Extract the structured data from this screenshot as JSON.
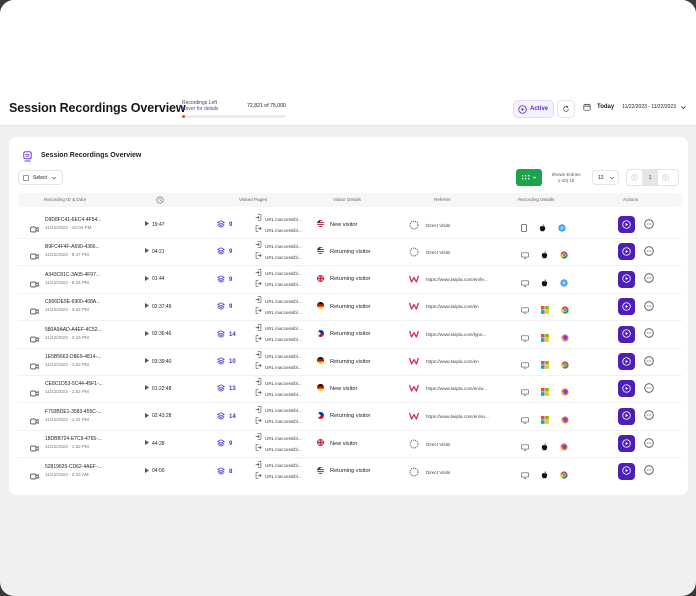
{
  "header": {
    "title": "Session Recordings Overview",
    "recordings_left_label": "Recordings Left",
    "hover_details": "Hover for details",
    "recordings_count": "72,821 of 75,000",
    "recordings_used_fraction": 0.029,
    "active_label": "Active",
    "today_label": "Today",
    "date_range": "11/22/2023 - 11/22/2023"
  },
  "card": {
    "title": "Session Recordings Overview",
    "select_label": "Select",
    "shown_entries_label": "Shown Entries",
    "shown_entries_range": "1-10| 10",
    "per_page": "12",
    "current_page": "1"
  },
  "columns": {
    "recording": "Recording ID & Date",
    "visited_pages": "Visited Pages",
    "visitor_details": "Visitor Details",
    "referrer": "Referrer",
    "recording_details": "Recording Details",
    "actions": "Actions"
  },
  "rows": [
    {
      "id": "D9D8FC41-6EC4-4F54...",
      "date": "11/22/2023 - 10:04 PM",
      "duration": "19:47",
      "pages": "9",
      "url1": "URL inaccessibl...",
      "url2": "URL inaccessibl...",
      "visitor": "New visitor",
      "flag": "us",
      "referrer": "Direct Visits",
      "ref_type": "direct",
      "device": "mobile",
      "os": "apple",
      "browser": "safari"
    },
    {
      "id": "B9FC4F4F-A690-4366...",
      "date": "11/22/2023 - 9:47 PM",
      "duration": "04:21",
      "pages": "9",
      "url1": "URL inaccessibl...",
      "url2": "URL inaccessibl...",
      "visitor": "Returning visitor",
      "flag": "us",
      "referrer": "Direct Visits",
      "ref_type": "direct",
      "device": "desktop",
      "os": "apple",
      "browser": "chrome"
    },
    {
      "id": "A343C81C-3A05-4F97...",
      "date": "11/22/2023 - 8:24 PM",
      "duration": "01:44",
      "pages": "9",
      "url1": "URL inaccessibl...",
      "url2": "URL inaccessibl...",
      "visitor": "Returning visitor",
      "flag": "gb",
      "referrer": "https://www.twipla.com/en/fe...",
      "ref_type": "twipla",
      "device": "desktop",
      "os": "apple",
      "browser": "safari"
    },
    {
      "id": "C666DE5E-6900-468A...",
      "date": "11/22/2023 - 3:42 PM",
      "duration": "02:37:49",
      "pages": "9",
      "url1": "URL inaccessibl...",
      "url2": "URL inaccessibl...",
      "visitor": "Returning visitor",
      "flag": "de",
      "referrer": "https://www.twipla.com/en",
      "ref_type": "twipla",
      "device": "desktop",
      "os": "windows",
      "browser": "chrome"
    },
    {
      "id": "580A9AAD-A4EF-4C52...",
      "date": "11/22/2023 - 2:16 PM",
      "duration": "02:36:46",
      "pages": "14",
      "url1": "URL inaccessibl...",
      "url2": "URL inaccessibl...",
      "visitor": "Returning visitor",
      "flag": "ph",
      "referrer": "https://www.twipla.com/typo...",
      "ref_type": "twipla",
      "device": "desktop",
      "os": "windows",
      "browser": "firefox"
    },
    {
      "id": "1E5B5662-D8E9-4814-...",
      "date": "11/22/2023 - 1:52 PM",
      "duration": "03:39:40",
      "pages": "10",
      "url1": "URL inaccessibl...",
      "url2": "URL inaccessibl...",
      "visitor": "Returning visitor",
      "flag": "de",
      "referrer": "https://www.twipla.com/en",
      "ref_type": "twipla",
      "device": "desktop",
      "os": "windows",
      "browser": "chrome"
    },
    {
      "id": "CE8C1D53-5C44-45F1-...",
      "date": "11/22/2023 - 1:52 PM",
      "duration": "01:22:48",
      "pages": "13",
      "url1": "URL inaccessibl...",
      "url2": "URL inaccessibl...",
      "visitor": "New visitor",
      "flag": "de",
      "referrer": "https://www.twipla.com/en/w...",
      "ref_type": "twipla",
      "device": "desktop",
      "os": "windows",
      "browser": "firefox"
    },
    {
      "id": "F793BDE1-3583-455C-...",
      "date": "11/22/2023 - 1:41 PM",
      "duration": "02:43:28",
      "pages": "14",
      "url1": "URL inaccessibl...",
      "url2": "URL inaccessibl...",
      "visitor": "Returning visitor",
      "flag": "ph",
      "referrer": "https://www.twipla.com/en/su...",
      "ref_type": "twipla",
      "device": "desktop",
      "os": "windows",
      "browser": "firefox"
    },
    {
      "id": "18DBB724-E7C9-4765-...",
      "date": "11/22/2023 - 1:52 PM",
      "duration": "44:28",
      "pages": "9",
      "url1": "URL inaccessibl...",
      "url2": "URL inaccessibl...",
      "visitor": "New visitor",
      "flag": "gb",
      "referrer": "Direct Visits",
      "ref_type": "direct",
      "device": "desktop",
      "os": "apple",
      "browser": "firefox"
    },
    {
      "id": "52819625-CD62-4AEF-...",
      "date": "11/22/2023 - 2:22 AM",
      "duration": "04:00",
      "pages": "8",
      "url1": "URL inaccessibl...",
      "url2": "URL inaccessibl...",
      "visitor": "Returning visitor",
      "flag": "us",
      "referrer": "Direct Visits",
      "ref_type": "direct",
      "device": "desktop",
      "os": "apple",
      "browser": "chrome"
    }
  ],
  "colors": {
    "accent": "#4d1fb8",
    "green_button": "#1ba24a",
    "progress_fill": "#e8541f"
  }
}
